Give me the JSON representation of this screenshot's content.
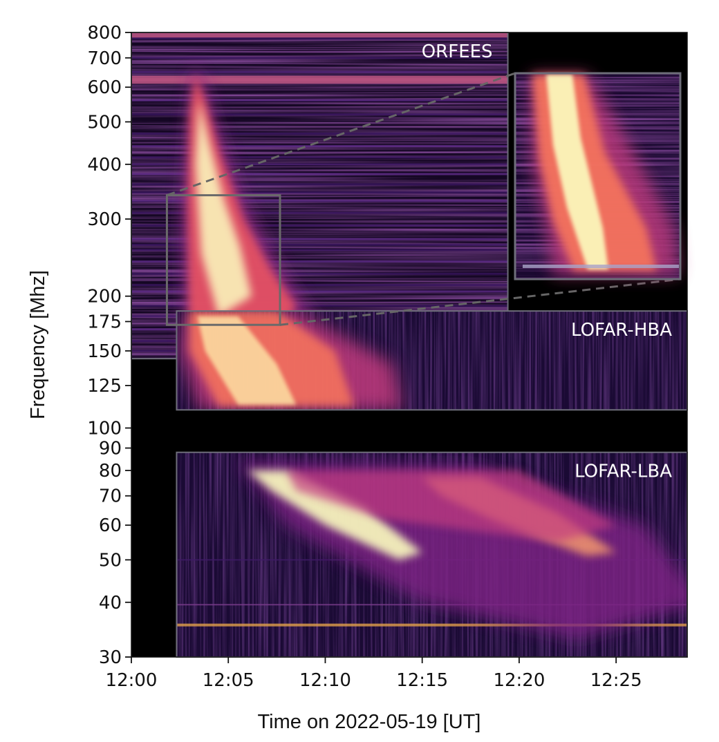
{
  "chart_data": {
    "type": "heatmap",
    "title": "",
    "xlabel": "Time on 2022-05-19 [UT]",
    "ylabel": "Frequency [Mhz]",
    "xlim": [
      "12:00",
      "12:28:40"
    ],
    "ylim": [
      30,
      800
    ],
    "yscale": "log",
    "grid": false,
    "colormap": "magma",
    "x_ticks": [
      "12:00",
      "12:05",
      "12:10",
      "12:15",
      "12:20",
      "12:25"
    ],
    "y_ticks": [
      "30",
      "40",
      "50",
      "60",
      "70",
      "80",
      "90",
      "100",
      "125",
      "150",
      "175",
      "200",
      "300",
      "400",
      "500",
      "600",
      "700",
      "800"
    ],
    "panels": [
      {
        "label": "ORFEES",
        "time_range": [
          "12:00",
          "12:19:25"
        ],
        "freq_range": [
          144,
          800
        ]
      },
      {
        "label": "LOFAR-HBA",
        "time_range": [
          "12:02:20",
          "12:28:40"
        ],
        "freq_range": [
          110,
          185
        ]
      },
      {
        "label": "LOFAR-LBA",
        "time_range": [
          "12:02:20",
          "12:28:40"
        ],
        "freq_range": [
          30,
          88
        ]
      }
    ],
    "zoom_region": {
      "time_range": [
        "12:01:50",
        "12:07:40"
      ],
      "freq_range": [
        172,
        340
      ]
    },
    "colors": {
      "background": "#000000",
      "bright": "#fcfdbf",
      "mid": "#f8765c",
      "dark": "#3b0f70",
      "frame": "#6e6e7a",
      "zoom_line": "#666666"
    }
  }
}
